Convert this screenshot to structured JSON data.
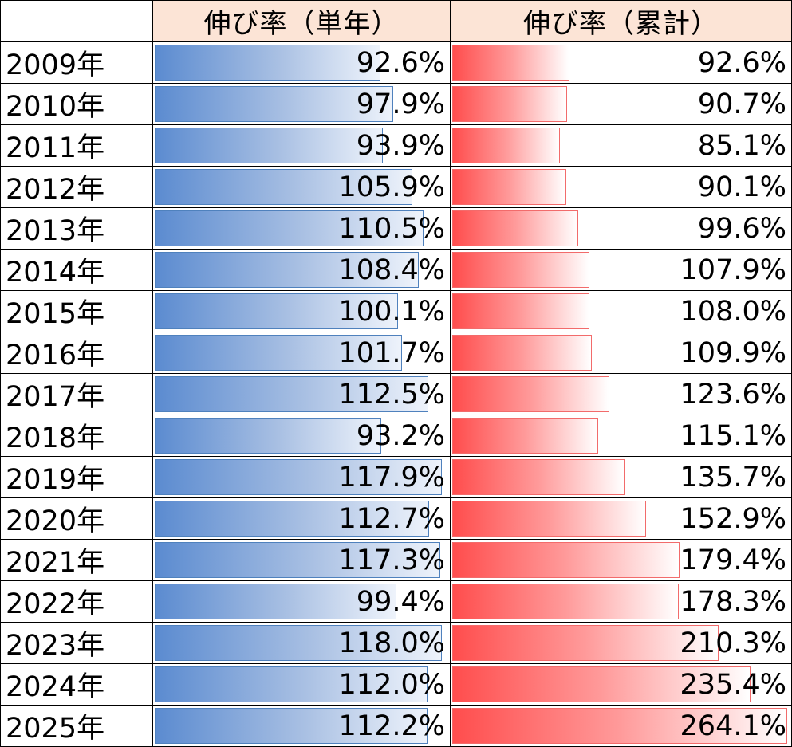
{
  "chart_data": {
    "type": "bar",
    "header_blank": "",
    "columns": [
      "伸び率（単年）",
      "伸び率（累計）"
    ],
    "rows": [
      {
        "year": "2009年",
        "single": "92.6%",
        "single_value": 92.6,
        "cumulative": "92.6%",
        "cumulative_value": 92.6
      },
      {
        "year": "2010年",
        "single": "97.9%",
        "single_value": 97.9,
        "cumulative": "90.7%",
        "cumulative_value": 90.7
      },
      {
        "year": "2011年",
        "single": "93.9%",
        "single_value": 93.9,
        "cumulative": "85.1%",
        "cumulative_value": 85.1
      },
      {
        "year": "2012年",
        "single": "105.9%",
        "single_value": 105.9,
        "cumulative": "90.1%",
        "cumulative_value": 90.1
      },
      {
        "year": "2013年",
        "single": "110.5%",
        "single_value": 110.5,
        "cumulative": "99.6%",
        "cumulative_value": 99.6
      },
      {
        "year": "2014年",
        "single": "108.4%",
        "single_value": 108.4,
        "cumulative": "107.9%",
        "cumulative_value": 107.9
      },
      {
        "year": "2015年",
        "single": "100.1%",
        "single_value": 100.1,
        "cumulative": "108.0%",
        "cumulative_value": 108.0
      },
      {
        "year": "2016年",
        "single": "101.7%",
        "single_value": 101.7,
        "cumulative": "109.9%",
        "cumulative_value": 109.9
      },
      {
        "year": "2017年",
        "single": "112.5%",
        "single_value": 112.5,
        "cumulative": "123.6%",
        "cumulative_value": 123.6
      },
      {
        "year": "2018年",
        "single": "93.2%",
        "single_value": 93.2,
        "cumulative": "115.1%",
        "cumulative_value": 115.1
      },
      {
        "year": "2019年",
        "single": "117.9%",
        "single_value": 117.9,
        "cumulative": "135.7%",
        "cumulative_value": 135.7
      },
      {
        "year": "2020年",
        "single": "112.7%",
        "single_value": 112.7,
        "cumulative": "152.9%",
        "cumulative_value": 152.9
      },
      {
        "year": "2021年",
        "single": "117.3%",
        "single_value": 117.3,
        "cumulative": "179.4%",
        "cumulative_value": 179.4
      },
      {
        "year": "2022年",
        "single": "99.4%",
        "single_value": 99.4,
        "cumulative": "178.3%",
        "cumulative_value": 178.3
      },
      {
        "year": "2023年",
        "single": "118.0%",
        "single_value": 118.0,
        "cumulative": "210.3%",
        "cumulative_value": 210.3
      },
      {
        "year": "2024年",
        "single": "112.0%",
        "single_value": 112.0,
        "cumulative": "235.4%",
        "cumulative_value": 235.4
      },
      {
        "year": "2025年",
        "single": "112.2%",
        "single_value": 112.2,
        "cumulative": "264.1%",
        "cumulative_value": 264.1
      }
    ],
    "colors": {
      "single_bar": "#5b8bd0",
      "cumulative_bar": "#ff4d4d",
      "header_fill": "#fce4d6"
    }
  }
}
